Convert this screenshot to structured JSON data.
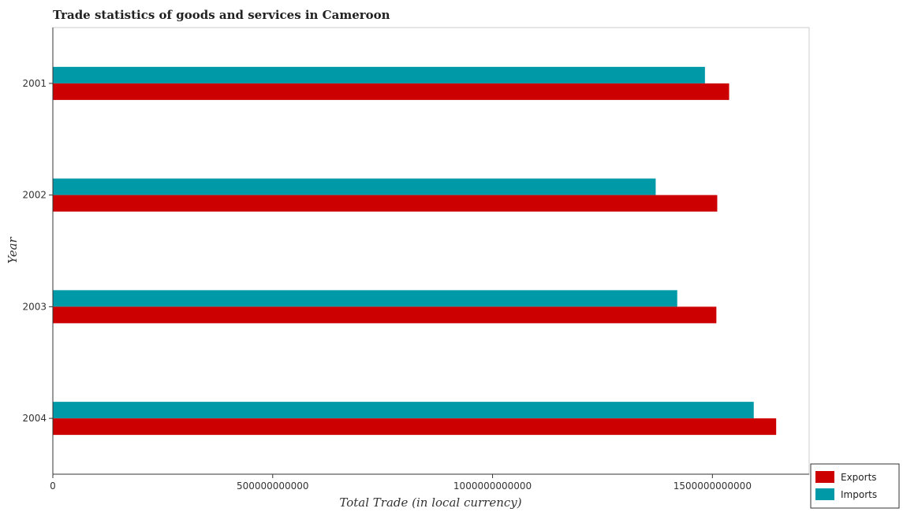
{
  "chart_data": {
    "type": "bar",
    "orientation": "horizontal",
    "title": "Trade statistics of goods and services in Cameroon",
    "xlabel": "Total Trade (in local currency)",
    "ylabel": "Year",
    "categories": [
      "2001",
      "2002",
      "2003",
      "2004"
    ],
    "series": [
      {
        "name": "Exports",
        "color": "#cc0000",
        "values": [
          1538000000000,
          1511000000000,
          1509000000000,
          1645000000000
        ]
      },
      {
        "name": "Imports",
        "color": "#0099a8",
        "values": [
          1483000000000,
          1371000000000,
          1420000000000,
          1594000000000
        ]
      }
    ],
    "xlim": [
      0,
      1720000000000
    ],
    "xticks": [
      0,
      500000000000,
      1000000000000,
      1500000000000
    ],
    "xtick_labels": [
      "0",
      "500000000000",
      "1000000000000",
      "1500000000000"
    ],
    "grid": false,
    "legend_position": "bottom-right"
  }
}
